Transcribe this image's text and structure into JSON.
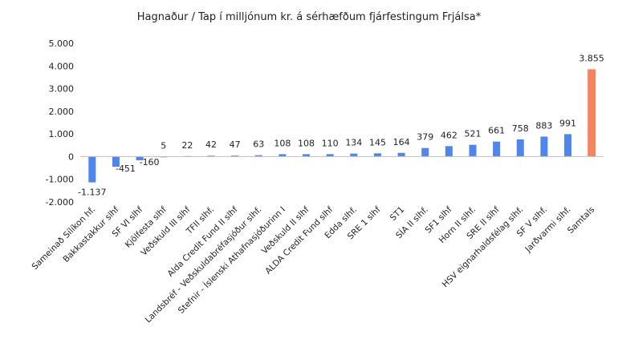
{
  "chart_data": {
    "type": "bar",
    "title": "Hagnaður / Tap í milljónum kr. á sérhæfðum fjárfestingum Frjálsa*",
    "xlabel": "",
    "ylabel": "",
    "ylim": [
      -2000,
      5000
    ],
    "yticks": [
      -2000,
      -1000,
      0,
      1000,
      2000,
      3000,
      4000,
      5000
    ],
    "ytick_labels": [
      "-2.000",
      "-1.000",
      "0",
      "1.000",
      "2.000",
      "3.000",
      "4.000",
      "5.000"
    ],
    "grid": false,
    "legend": "none",
    "colors": {
      "default": "#4f86ec",
      "total": "#f4845f"
    },
    "categories": [
      "Sameinað Sílíkon hf.",
      "Bakkastakkur slhf",
      "SF VI slhf",
      "Kjölfesta slhf",
      "Veðskuld III slhf",
      "TFII slhf.",
      "Alda Credit Fund II slhf",
      "Landsbréf - Veðskuldabréfasjóður slhf.",
      "Stefnir - Íslenski Athafnasjóðurinn I",
      "Veðskuld II slhf",
      "ALDA Credit Fund slhf",
      "Edda slhf.",
      "SRE 1 slhf",
      "ST1",
      "SÍA II slhf.",
      "SF1 slhf",
      "Horn II slhf.",
      "SRE II slhf",
      "HSV eignarhaldsfélag slhf.",
      "SF V slhf.",
      "Jarðvarmi slhf.",
      "Samtals"
    ],
    "values": [
      -1137,
      -451,
      -160,
      5,
      22,
      42,
      47,
      63,
      108,
      108,
      110,
      134,
      145,
      164,
      379,
      462,
      521,
      661,
      758,
      883,
      991,
      3855
    ],
    "value_labels": [
      "-1.137",
      "-451",
      "-160",
      "5",
      "22",
      "42",
      "47",
      "63",
      "108",
      "108",
      "110",
      "134",
      "145",
      "164",
      "379",
      "462",
      "521",
      "661",
      "758",
      "883",
      "991",
      "3.855"
    ],
    "highlight_index": 21
  }
}
